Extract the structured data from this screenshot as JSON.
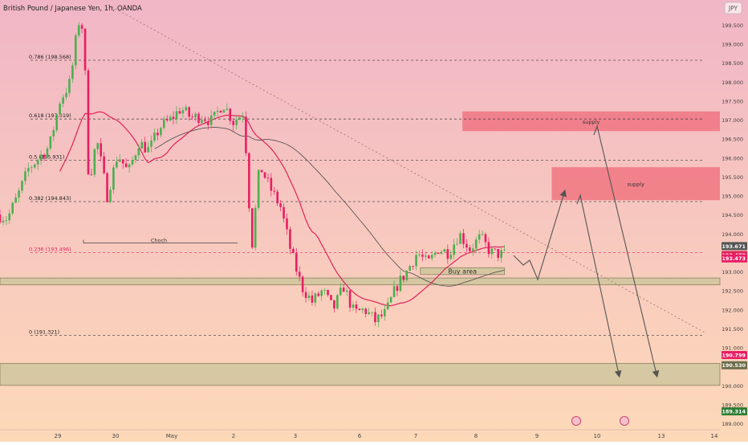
{
  "header": {
    "title": "British Pound / Japanese Yen, 1h, OANDA",
    "currency_badge": "JPY"
  },
  "colors": {
    "bg_top": "#f1b6c6",
    "bg_bottom": "#fdd9b8",
    "candle_up": "#4caf50",
    "candle_down": "#e91e63",
    "ma_fast": "#e0245a",
    "ma_slow": "#4a4a4a",
    "supply": "#ef6b78",
    "demand": "#c9c49a",
    "fib_line": "#333333",
    "arrow": "#555555"
  },
  "chart_data": {
    "type": "candlestick",
    "symbol": "GBPJPY",
    "timeframe": "1h",
    "ylim": [
      188.8,
      199.8
    ],
    "x_ticks": [
      "29",
      "30",
      "May",
      "2",
      "3",
      "6",
      "7",
      "8",
      "9",
      "10",
      "13",
      "14"
    ],
    "y_ticks": [
      "199.500",
      "199.000",
      "198.500",
      "198.000",
      "197.500",
      "197.000",
      "196.500",
      "196.000",
      "195.500",
      "195.000",
      "194.500",
      "194.000",
      "193.500",
      "193.000",
      "192.500",
      "192.000",
      "191.500",
      "191.000",
      "190.500",
      "190.000",
      "189.500",
      "189.000"
    ],
    "price_tags": [
      {
        "value": "193.671",
        "price": 193.671,
        "color": "#555555"
      },
      {
        "value": "193.478",
        "price": 193.478,
        "color": "#e0245a"
      },
      {
        "value": "193.473",
        "price": 193.473,
        "color": "#e91e63"
      },
      {
        "value": "190.799",
        "price": 190.799,
        "color": "#e91e63"
      },
      {
        "value": "190.530",
        "price": 190.53,
        "color": "#6b6b4a"
      },
      {
        "value": "189.314",
        "price": 189.314,
        "color": "#2e7d32"
      }
    ],
    "fib_levels": [
      {
        "label": "0.786 (198.568)",
        "price": 198.568
      },
      {
        "label": "0.618 (197.019)",
        "price": 197.019
      },
      {
        "label": "0.5 (195.931)",
        "price": 195.931
      },
      {
        "label": "0.382 (194.843)",
        "price": 194.843
      },
      {
        "label": "0.236 (193.496)",
        "price": 193.496
      },
      {
        "label": "0 (191.321)",
        "price": 191.321
      }
    ],
    "zones": [
      {
        "label": "supply",
        "kind": "supply",
        "top": 197.22,
        "bottom": 196.7,
        "x_from": 29.8,
        "x_to": 36
      },
      {
        "label": "supply",
        "kind": "supply",
        "top": 195.75,
        "bottom": 194.88,
        "x_from": 31.5,
        "x_to": 36
      },
      {
        "label": "Buy area",
        "kind": "demand",
        "top": 193.1,
        "bottom": 192.92,
        "x_from": 29.0,
        "x_to": 30.6
      },
      {
        "label": "",
        "kind": "demand",
        "top": 192.83,
        "bottom": 192.65,
        "x_from": 20.8,
        "x_to": 36
      },
      {
        "label": "",
        "kind": "demand",
        "top": 190.58,
        "bottom": 190.0,
        "x_from": 20.8,
        "x_to": 38
      }
    ],
    "choch": {
      "label": "Choch",
      "price": 193.75
    },
    "time_range": [
      21,
      41
    ],
    "candles_daily_anchor": [
      {
        "day": "29",
        "t": 22.6
      },
      {
        "day": "30",
        "t": 23.6
      },
      {
        "day": "May",
        "t": 24.6
      },
      {
        "day": "2",
        "t": 25.6
      },
      {
        "day": "3",
        "t": 26.6
      },
      {
        "day": "6",
        "t": 27.6
      },
      {
        "day": "7",
        "t": 28.6
      },
      {
        "day": "8",
        "t": 29.6
      },
      {
        "day": "9",
        "t": 30.6
      },
      {
        "day": "10",
        "t": 31.6
      },
      {
        "day": "13",
        "t": 32.6
      },
      {
        "day": "14",
        "t": 33.6
      }
    ],
    "price_path": [
      {
        "t": 21.0,
        "p": 194.5
      },
      {
        "t": 21.2,
        "p": 194.4
      },
      {
        "t": 21.4,
        "p": 195.0
      },
      {
        "t": 21.6,
        "p": 195.7
      },
      {
        "t": 21.8,
        "p": 196.0
      },
      {
        "t": 22.0,
        "p": 196.3
      },
      {
        "t": 22.2,
        "p": 197.5
      },
      {
        "t": 22.4,
        "p": 198.0
      },
      {
        "t": 22.55,
        "p": 199.6
      },
      {
        "t": 22.65,
        "p": 199.4
      },
      {
        "t": 22.75,
        "p": 195.3
      },
      {
        "t": 22.9,
        "p": 196.5
      },
      {
        "t": 23.1,
        "p": 195.0
      },
      {
        "t": 23.3,
        "p": 196.1
      },
      {
        "t": 23.5,
        "p": 195.6
      },
      {
        "t": 23.7,
        "p": 196.4
      },
      {
        "t": 23.9,
        "p": 196.2
      },
      {
        "t": 24.1,
        "p": 196.8
      },
      {
        "t": 24.3,
        "p": 197.0
      },
      {
        "t": 24.5,
        "p": 197.3
      },
      {
        "t": 24.7,
        "p": 197.05
      },
      {
        "t": 24.9,
        "p": 197.1
      },
      {
        "t": 25.1,
        "p": 196.95
      },
      {
        "t": 25.3,
        "p": 197.45
      },
      {
        "t": 25.5,
        "p": 196.95
      },
      {
        "t": 25.7,
        "p": 197.2
      },
      {
        "t": 25.85,
        "p": 193.6
      },
      {
        "t": 26.0,
        "p": 195.8
      },
      {
        "t": 26.2,
        "p": 195.2
      },
      {
        "t": 26.4,
        "p": 194.7
      },
      {
        "t": 26.6,
        "p": 193.5
      },
      {
        "t": 26.8,
        "p": 192.6
      },
      {
        "t": 27.0,
        "p": 192.2
      },
      {
        "t": 27.2,
        "p": 192.5
      },
      {
        "t": 27.4,
        "p": 192.0
      },
      {
        "t": 27.6,
        "p": 192.6
      },
      {
        "t": 27.8,
        "p": 191.9
      },
      {
        "t": 28.0,
        "p": 192.0
      },
      {
        "t": 28.2,
        "p": 191.7
      },
      {
        "t": 28.4,
        "p": 191.9
      },
      {
        "t": 28.6,
        "p": 192.6
      },
      {
        "t": 28.8,
        "p": 193.0
      },
      {
        "t": 29.0,
        "p": 193.5
      },
      {
        "t": 29.2,
        "p": 193.2
      },
      {
        "t": 29.4,
        "p": 193.6
      },
      {
        "t": 29.6,
        "p": 193.5
      },
      {
        "t": 29.8,
        "p": 194.0
      },
      {
        "t": 30.0,
        "p": 193.6
      },
      {
        "t": 30.2,
        "p": 193.9
      },
      {
        "t": 30.4,
        "p": 193.5
      },
      {
        "t": 30.6,
        "p": 193.45
      }
    ]
  }
}
